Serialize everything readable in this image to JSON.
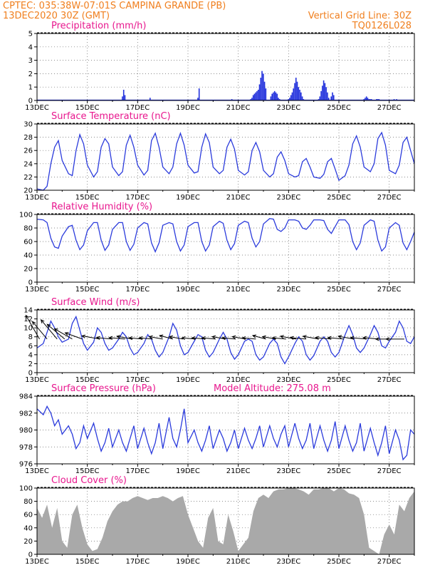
{
  "header": {
    "line1": "CPTEC:   035:38W-07:01S   CAMPINA GRANDE (PB)",
    "line2": "13DEC2020 30Z (GMT)",
    "grid_note": "Vertical Grid Line: 30Z",
    "model_code": "TQ0126L028"
  },
  "colors": {
    "header": "#f07f1e",
    "title": "#e8178e",
    "line": "#2b3bdc",
    "bar": "#2130dc",
    "cloud": "#a9a9a9"
  },
  "x_labels": [
    "13DEC",
    "15DEC",
    "17DEC",
    "19DEC",
    "21DEC",
    "23DEC",
    "25DEC",
    "27DEC"
  ],
  "chart_data": [
    {
      "type": "bar",
      "title": "Precipitation (mm/h)",
      "ylim": [
        0,
        5
      ],
      "yticks": [
        "0",
        "1",
        "2",
        "3",
        "4",
        "5"
      ],
      "x_day_range": [
        0,
        15
      ],
      "x": [
        3.4,
        3.45,
        3.5,
        4.5,
        6.4,
        6.45,
        7.75,
        8.5,
        8.55,
        8.6,
        8.65,
        8.7,
        8.75,
        8.8,
        8.85,
        8.9,
        8.95,
        9.0,
        9.05,
        9.1,
        9.3,
        9.35,
        9.4,
        9.45,
        9.5,
        9.55,
        9.6,
        9.65,
        10.0,
        10.05,
        10.1,
        10.15,
        10.2,
        10.25,
        10.3,
        10.35,
        10.4,
        10.45,
        10.5,
        10.55,
        10.6,
        11.2,
        11.25,
        11.3,
        11.35,
        11.4,
        11.45,
        11.5,
        11.55,
        11.6,
        11.7,
        11.75,
        11.8,
        13.0,
        13.05,
        13.1,
        13.15,
        13.2,
        13.25,
        13.3,
        13.5,
        13.55,
        13.6,
        14.2,
        14.3
      ],
      "values": [
        0.3,
        0.8,
        0.4,
        0.2,
        0.2,
        0.9,
        0.1,
        0.1,
        0.2,
        0.4,
        0.5,
        0.6,
        0.7,
        0.8,
        1.2,
        1.7,
        2.2,
        2.0,
        1.4,
        0.9,
        0.3,
        0.5,
        0.6,
        0.7,
        0.6,
        0.5,
        0.2,
        0.1,
        0.1,
        0.2,
        0.4,
        0.6,
        0.9,
        1.3,
        1.7,
        1.4,
        1.0,
        0.8,
        0.6,
        0.3,
        0.1,
        0.1,
        0.3,
        0.7,
        1.1,
        1.5,
        1.3,
        1.0,
        0.6,
        0.2,
        0.3,
        0.6,
        0.4,
        0.1,
        0.2,
        0.3,
        0.2,
        0.1,
        0.1,
        0.1,
        0.1,
        0.1,
        0.1,
        0.1,
        0.1
      ]
    },
    {
      "type": "line",
      "title": "Surface Temperature (nC)",
      "ylim": [
        20,
        30
      ],
      "yticks": [
        "20",
        "22",
        "24",
        "26",
        "28",
        "30"
      ],
      "x_day_range": [
        0,
        15
      ],
      "x": [
        0,
        0.25,
        0.4,
        0.55,
        0.7,
        0.85,
        1.0,
        1.25,
        1.4,
        1.55,
        1.7,
        1.85,
        2.0,
        2.25,
        2.4,
        2.55,
        2.7,
        2.85,
        3.0,
        3.25,
        3.4,
        3.55,
        3.7,
        3.85,
        4.0,
        4.25,
        4.4,
        4.55,
        4.7,
        4.85,
        5.0,
        5.25,
        5.4,
        5.55,
        5.7,
        5.85,
        6.0,
        6.25,
        6.4,
        6.55,
        6.7,
        6.85,
        7.0,
        7.25,
        7.4,
        7.55,
        7.7,
        7.85,
        8.0,
        8.25,
        8.4,
        8.55,
        8.7,
        8.85,
        9.0,
        9.25,
        9.4,
        9.55,
        9.7,
        9.85,
        10.0,
        10.25,
        10.4,
        10.55,
        10.7,
        10.85,
        11.0,
        11.25,
        11.4,
        11.55,
        11.7,
        11.85,
        12.0,
        12.25,
        12.4,
        12.55,
        12.7,
        12.85,
        13.0,
        13.25,
        13.4,
        13.55,
        13.7,
        13.85,
        14.0,
        14.25,
        14.4,
        14.55,
        14.7,
        14.85,
        15.0
      ],
      "values": [
        20.2,
        20.0,
        20.6,
        24.0,
        26.5,
        27.5,
        24.5,
        22.5,
        22.2,
        26.0,
        28.4,
        27.0,
        23.8,
        22.0,
        22.8,
        26.5,
        27.8,
        27.0,
        23.5,
        22.2,
        22.8,
        26.8,
        28.3,
        26.5,
        23.8,
        22.3,
        23.0,
        27.5,
        28.6,
        26.5,
        23.5,
        22.5,
        23.5,
        27.0,
        28.6,
        26.8,
        23.8,
        22.6,
        22.8,
        26.5,
        28.5,
        27.2,
        23.5,
        22.5,
        23.0,
        26.5,
        27.7,
        26.2,
        23.0,
        22.3,
        22.8,
        26.0,
        27.2,
        25.8,
        23.0,
        22.0,
        22.5,
        25.0,
        25.8,
        24.5,
        22.5,
        22.0,
        22.2,
        24.3,
        24.8,
        23.5,
        22.0,
        21.8,
        22.4,
        24.3,
        24.8,
        23.2,
        21.5,
        22.2,
        23.8,
        27.0,
        28.2,
        26.5,
        23.5,
        22.8,
        24.0,
        27.8,
        28.7,
        26.8,
        23.0,
        22.5,
        23.8,
        27.2,
        28.0,
        26.0,
        24.0
      ]
    },
    {
      "type": "line",
      "title": "Relative Humidity (%)",
      "ylim": [
        0,
        100
      ],
      "yticks": [
        "0",
        "20",
        "40",
        "60",
        "80",
        "100"
      ],
      "x_day_range": [
        0,
        15
      ],
      "x": [
        0,
        0.25,
        0.4,
        0.55,
        0.7,
        0.85,
        1.0,
        1.25,
        1.4,
        1.55,
        1.7,
        1.85,
        2.0,
        2.25,
        2.4,
        2.55,
        2.7,
        2.85,
        3.0,
        3.25,
        3.4,
        3.55,
        3.7,
        3.85,
        4.0,
        4.25,
        4.4,
        4.55,
        4.7,
        4.85,
        5.0,
        5.25,
        5.4,
        5.55,
        5.7,
        5.85,
        6.0,
        6.25,
        6.4,
        6.55,
        6.7,
        6.85,
        7.0,
        7.25,
        7.4,
        7.55,
        7.7,
        7.85,
        8.0,
        8.25,
        8.4,
        8.55,
        8.7,
        8.85,
        9.0,
        9.25,
        9.4,
        9.55,
        9.7,
        9.85,
        10.0,
        10.25,
        10.4,
        10.55,
        10.7,
        10.85,
        11.0,
        11.25,
        11.4,
        11.55,
        11.7,
        11.85,
        12.0,
        12.25,
        12.4,
        12.55,
        12.7,
        12.85,
        13.0,
        13.25,
        13.4,
        13.55,
        13.7,
        13.85,
        14.0,
        14.25,
        14.4,
        14.55,
        14.7,
        14.85,
        15.0
      ],
      "values": [
        93,
        92,
        88,
        65,
        52,
        50,
        68,
        82,
        84,
        62,
        48,
        55,
        76,
        88,
        88,
        62,
        47,
        55,
        78,
        88,
        88,
        60,
        47,
        56,
        80,
        88,
        86,
        58,
        45,
        58,
        84,
        88,
        86,
        60,
        46,
        55,
        82,
        88,
        88,
        60,
        46,
        55,
        82,
        90,
        87,
        62,
        48,
        57,
        84,
        90,
        88,
        65,
        52,
        60,
        86,
        94,
        93,
        78,
        75,
        80,
        92,
        92,
        90,
        80,
        78,
        84,
        92,
        92,
        91,
        78,
        72,
        82,
        92,
        92,
        85,
        60,
        48,
        58,
        84,
        92,
        90,
        62,
        46,
        52,
        80,
        88,
        84,
        58,
        48,
        60,
        74
      ]
    },
    {
      "type": "line",
      "title": "Surface Wind (m/s)",
      "ylim": [
        0,
        14
      ],
      "yticks": [
        "0",
        "2",
        "4",
        "6",
        "8",
        "10",
        "12",
        "14"
      ],
      "x_day_range": [
        0,
        15
      ],
      "x": [
        0,
        0.25,
        0.4,
        0.55,
        0.7,
        0.85,
        1.0,
        1.25,
        1.4,
        1.55,
        1.7,
        1.85,
        2.0,
        2.25,
        2.4,
        2.55,
        2.7,
        2.85,
        3.0,
        3.25,
        3.4,
        3.55,
        3.7,
        3.85,
        4.0,
        4.25,
        4.4,
        4.55,
        4.7,
        4.85,
        5.0,
        5.25,
        5.4,
        5.55,
        5.7,
        5.85,
        6.0,
        6.25,
        6.4,
        6.55,
        6.7,
        6.85,
        7.0,
        7.25,
        7.4,
        7.55,
        7.7,
        7.85,
        8.0,
        8.25,
        8.4,
        8.55,
        8.7,
        8.85,
        9.0,
        9.25,
        9.4,
        9.55,
        9.7,
        9.85,
        10.0,
        10.25,
        10.4,
        10.55,
        10.7,
        10.85,
        11.0,
        11.25,
        11.4,
        11.55,
        11.7,
        11.85,
        12.0,
        12.25,
        12.4,
        12.55,
        12.7,
        12.85,
        13.0,
        13.25,
        13.4,
        13.55,
        13.7,
        13.85,
        14.0,
        14.25,
        14.4,
        14.55,
        14.7,
        14.85,
        15.0
      ],
      "values": [
        5.5,
        6.5,
        9.0,
        11.5,
        10.0,
        8.0,
        6.8,
        7.5,
        11.0,
        12.5,
        9.5,
        6.5,
        5.0,
        6.8,
        10.0,
        9.0,
        6.5,
        5.0,
        5.5,
        7.5,
        9.0,
        8.0,
        5.5,
        4.0,
        4.5,
        6.5,
        8.5,
        7.5,
        5.0,
        3.5,
        4.5,
        8.0,
        11.0,
        9.5,
        6.0,
        4.0,
        4.5,
        7.0,
        8.5,
        8.0,
        5.0,
        3.5,
        4.5,
        7.5,
        9.0,
        7.5,
        4.5,
        3.0,
        4.0,
        7.0,
        7.5,
        7.0,
        4.0,
        2.8,
        3.5,
        6.5,
        7.5,
        6.5,
        3.5,
        2.0,
        3.5,
        6.5,
        8.0,
        7.0,
        4.0,
        2.8,
        3.8,
        7.0,
        8.0,
        7.0,
        4.5,
        3.5,
        4.5,
        8.5,
        10.5,
        8.5,
        5.5,
        4.5,
        5.5,
        8.5,
        10.5,
        9.0,
        6.0,
        5.5,
        7.0,
        9.0,
        11.5,
        10.0,
        7.0,
        6.5,
        8.0
      ],
      "arrows": {
        "x": [
          0.1,
          0.4,
          0.8,
          1.1,
          1.4,
          1.8,
          2.5,
          3.0,
          3.5,
          3.8,
          4.2,
          4.6,
          5.0,
          5.4,
          5.8,
          6.3,
          6.7,
          7.1,
          7.5,
          7.9,
          8.3,
          8.7,
          9.1,
          9.5,
          9.9,
          10.3,
          10.7,
          11.2,
          11.7,
          12.2,
          12.6,
          13.1,
          13.6,
          14.1,
          14.6
        ],
        "speed": [
          12,
          10,
          11,
          10,
          9,
          8,
          8,
          7,
          7,
          7,
          6,
          6,
          6,
          6,
          6,
          6,
          6,
          6,
          6,
          6,
          6,
          6,
          6,
          6,
          6,
          7,
          7,
          7,
          7,
          7,
          7,
          7,
          7,
          7,
          8
        ],
        "direction_deg": [
          150,
          140,
          140,
          130,
          120,
          110,
          100,
          95,
          95,
          100,
          95,
          95,
          100,
          105,
          100,
          95,
          95,
          95,
          100,
          95,
          100,
          95,
          105,
          100,
          95,
          100,
          95,
          100,
          95,
          95,
          100,
          95,
          95,
          90,
          90
        ]
      }
    },
    {
      "type": "line",
      "title": "Surface Pressure (hPa)",
      "annotation": "Model Altitude: 275.08 m",
      "ylim": [
        976,
        984
      ],
      "yticks": [
        "976",
        "978",
        "980",
        "982",
        "984"
      ],
      "x_day_range": [
        0,
        15
      ],
      "x": [
        0,
        0.25,
        0.4,
        0.55,
        0.7,
        0.85,
        1.0,
        1.25,
        1.4,
        1.55,
        1.7,
        1.85,
        2.0,
        2.25,
        2.4,
        2.55,
        2.7,
        2.85,
        3.0,
        3.25,
        3.4,
        3.55,
        3.7,
        3.85,
        4.0,
        4.25,
        4.4,
        4.55,
        4.7,
        4.85,
        5.0,
        5.25,
        5.4,
        5.55,
        5.7,
        5.85,
        6.0,
        6.25,
        6.4,
        6.55,
        6.7,
        6.85,
        7.0,
        7.25,
        7.4,
        7.55,
        7.7,
        7.85,
        8.0,
        8.25,
        8.4,
        8.55,
        8.7,
        8.85,
        9.0,
        9.25,
        9.4,
        9.55,
        9.7,
        9.85,
        10.0,
        10.25,
        10.4,
        10.55,
        10.7,
        10.85,
        11.0,
        11.25,
        11.4,
        11.55,
        11.7,
        11.85,
        12.0,
        12.25,
        12.4,
        12.55,
        12.7,
        12.85,
        13.0,
        13.25,
        13.4,
        13.55,
        13.7,
        13.85,
        14.0,
        14.25,
        14.4,
        14.55,
        14.7,
        14.85,
        15.0
      ],
      "values": [
        982.5,
        981.8,
        982.8,
        982.0,
        980.5,
        981.2,
        979.5,
        980.5,
        979.5,
        977.8,
        978.5,
        980.5,
        979.0,
        980.8,
        979.0,
        977.5,
        978.5,
        980.2,
        978.0,
        980.0,
        978.5,
        977.5,
        979.0,
        980.5,
        977.8,
        980.2,
        978.5,
        977.2,
        978.5,
        980.8,
        977.8,
        981.5,
        979.0,
        978.0,
        980.0,
        982.5,
        978.5,
        980.0,
        978.5,
        977.5,
        978.8,
        980.5,
        977.8,
        980.0,
        979.0,
        977.5,
        978.5,
        980.0,
        977.8,
        980.2,
        978.8,
        977.8,
        979.0,
        980.5,
        978.0,
        980.5,
        979.0,
        978.0,
        979.5,
        980.5,
        978.0,
        980.8,
        979.0,
        977.8,
        978.8,
        980.8,
        977.8,
        980.5,
        978.8,
        977.5,
        978.8,
        981.0,
        977.8,
        980.5,
        978.8,
        977.5,
        978.5,
        980.8,
        977.5,
        980.2,
        978.5,
        977.0,
        978.5,
        980.5,
        977.2,
        980.0,
        978.8,
        976.5,
        977.0,
        980.0,
        979.5
      ]
    },
    {
      "type": "area",
      "title": "Cloud Cover (%)",
      "ylim": [
        0,
        100
      ],
      "yticks": [
        "0",
        "20",
        "40",
        "60",
        "80",
        "100"
      ],
      "x_day_range": [
        0,
        15
      ],
      "x": [
        0,
        0.2,
        0.4,
        0.6,
        0.8,
        1.0,
        1.2,
        1.4,
        1.6,
        1.8,
        2.0,
        2.2,
        2.4,
        2.6,
        2.8,
        3.0,
        3.2,
        3.4,
        3.6,
        3.8,
        4.0,
        4.2,
        4.4,
        4.6,
        4.8,
        5.0,
        5.2,
        5.4,
        5.6,
        5.8,
        6.0,
        6.2,
        6.4,
        6.6,
        6.8,
        7.0,
        7.2,
        7.4,
        7.6,
        7.8,
        8.0,
        8.2,
        8.4,
        8.6,
        8.8,
        9.0,
        9.2,
        9.4,
        9.6,
        9.8,
        10.0,
        10.2,
        10.4,
        10.6,
        10.8,
        11.0,
        11.2,
        11.4,
        11.6,
        11.8,
        12.0,
        12.2,
        12.4,
        12.6,
        12.8,
        13.0,
        13.2,
        13.4,
        13.6,
        13.8,
        14.0,
        14.2,
        14.4,
        14.6,
        14.8,
        15.0
      ],
      "values": [
        70,
        55,
        75,
        40,
        70,
        20,
        10,
        60,
        75,
        40,
        15,
        5,
        8,
        25,
        50,
        65,
        75,
        80,
        80,
        85,
        88,
        85,
        82,
        85,
        85,
        88,
        85,
        80,
        85,
        88,
        60,
        40,
        20,
        10,
        55,
        70,
        20,
        15,
        60,
        35,
        5,
        15,
        25,
        65,
        85,
        90,
        85,
        95,
        98,
        98,
        100,
        100,
        98,
        95,
        90,
        98,
        98,
        100,
        100,
        95,
        100,
        98,
        92,
        90,
        85,
        60,
        10,
        5,
        0,
        30,
        45,
        30,
        75,
        65,
        85,
        95
      ]
    }
  ]
}
